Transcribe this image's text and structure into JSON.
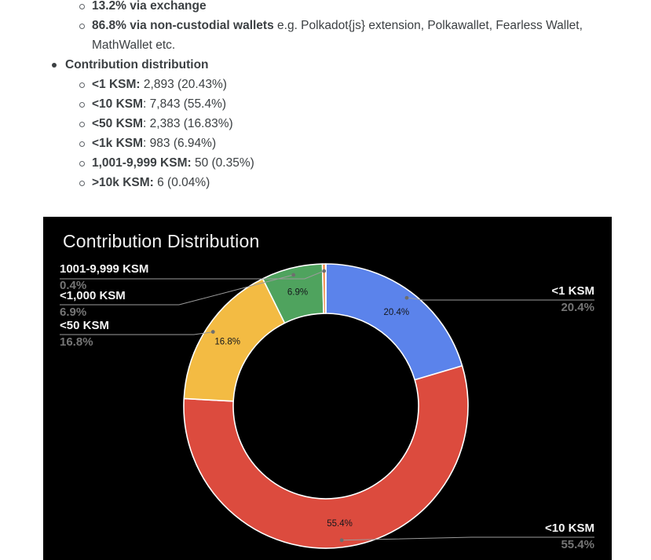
{
  "document": {
    "items": [
      {
        "level": 2,
        "bold": "13.2% via exchange",
        "rest": ""
      },
      {
        "level": 2,
        "bold": "86.8% via non-custodial wallets",
        "rest": " e.g. Polkadot{js} extension, Polkawallet, Fearless Wallet, MathWallet etc."
      },
      {
        "level": 1,
        "bold": "Contribution distribution",
        "rest": ""
      },
      {
        "level": 2,
        "bold": "<1 KSM:",
        "rest": " 2,893 (20.43%)"
      },
      {
        "level": 2,
        "bold": "<10 KSM",
        "rest": ": 7,843 (55.4%)"
      },
      {
        "level": 2,
        "bold": "<50 KSM",
        "rest": ": 2,383 (16.83%)"
      },
      {
        "level": 2,
        "bold": "<1k KSM",
        "rest": ": 983 (6.94%)"
      },
      {
        "level": 2,
        "bold": "1,001-9,999 KSM:",
        "rest": " 50 (0.35%)"
      },
      {
        "level": 2,
        "bold": ">10k KSM:",
        "rest": " 6 (0.04%)"
      }
    ]
  },
  "chart": {
    "title": "Contribution Distribution",
    "callouts": [
      {
        "name": "1001-9,999 KSM",
        "pct": "0.4%"
      },
      {
        "name": "<1,000 KSM",
        "pct": "6.9%"
      },
      {
        "name": "<50 KSM",
        "pct": "16.8%"
      },
      {
        "name": "<1 KSM",
        "pct": "20.4%"
      },
      {
        "name": "<10 KSM",
        "pct": "55.4%"
      }
    ]
  },
  "chart_data": {
    "type": "pie",
    "subtype": "donut",
    "title": "Contribution Distribution",
    "labels": [
      "<1 KSM",
      "<10 KSM",
      "<50 KSM",
      "<1,000 KSM",
      "1001-9,999 KSM",
      ">10k KSM"
    ],
    "values": [
      20.43,
      55.4,
      16.83,
      6.94,
      0.35,
      0.04
    ],
    "counts": [
      2893,
      7843,
      2383,
      983,
      50,
      6
    ],
    "displayed_percents": [
      "20.4%",
      "55.4%",
      "16.8%",
      "6.9%",
      "0.4%",
      ""
    ],
    "colors": [
      "#5b83eb",
      "#dc4b3e",
      "#f3bb43",
      "#4fa35e",
      "#ef8038",
      "#a8402f"
    ],
    "background": "#000000",
    "slice_border_color": "#ffffff",
    "legend": "external-callouts-with-leader-lines",
    "start_angle_deg": 0,
    "direction": "clockwise"
  }
}
